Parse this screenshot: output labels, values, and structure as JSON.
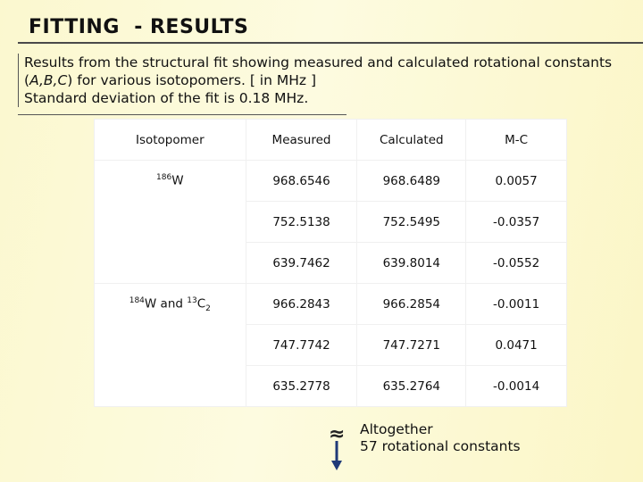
{
  "header": {
    "title": "FITTING  - RESULTS"
  },
  "description": {
    "line1_start": "Results from the structural fit showing measured and calculated rotational constants (",
    "line1_italic": "A,B,C",
    "line1_end": ") for various isotopomers. [ in MHz ]",
    "line2": "Standard deviation of the fit is 0.18 MHz."
  },
  "table": {
    "headers": [
      "Isotopomer",
      "Measured",
      "Calculated",
      "M-C"
    ],
    "groups": [
      {
        "label": [
          "186",
          "W"
        ]
      },
      {
        "label": [
          "184",
          "W and ",
          "13",
          "C",
          "2"
        ]
      }
    ],
    "rows": [
      [
        "968.6546",
        "968.6489",
        "0.0057"
      ],
      [
        "752.5138",
        "752.5495",
        "-0.0357"
      ],
      [
        "639.7462",
        "639.8014",
        "-0.0552"
      ],
      [
        "966.2843",
        "966.2854",
        "-0.0011"
      ],
      [
        "747.7742",
        "747.7271",
        "0.0471"
      ],
      [
        "635.2778",
        "635.2764",
        "-0.0014"
      ]
    ]
  },
  "note": {
    "symbol": "≈",
    "lines": [
      "Altogether",
      "57 rotational constants"
    ]
  }
}
